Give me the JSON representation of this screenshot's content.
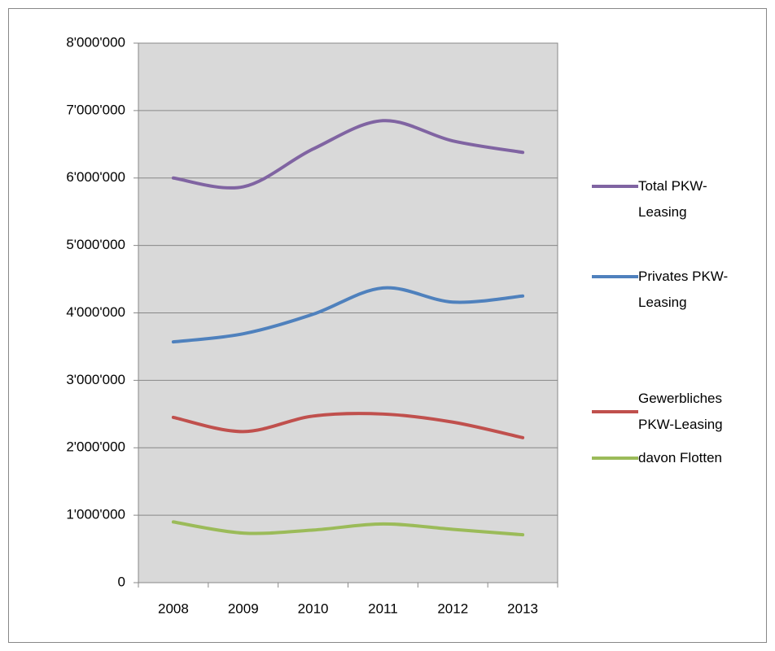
{
  "chart_data": {
    "type": "line",
    "categories": [
      "2008",
      "2009",
      "2010",
      "2011",
      "2012",
      "2013"
    ],
    "series": [
      {
        "name": "Total PKW-Leasing",
        "color": "#8064a2",
        "values": [
          6000000,
          5870000,
          6430000,
          6850000,
          6550000,
          6380000
        ]
      },
      {
        "name": "Privates PKW-Leasing",
        "color": "#4f81bd",
        "values": [
          3570000,
          3690000,
          3980000,
          4370000,
          4160000,
          4250000
        ]
      },
      {
        "name": "Gewerbliches PKW-Leasing",
        "color": "#c0504d",
        "values": [
          2450000,
          2240000,
          2470000,
          2500000,
          2380000,
          2150000
        ]
      },
      {
        "name": "davon Flotten",
        "color": "#9bbb59",
        "values": [
          900000,
          735000,
          780000,
          870000,
          790000,
          710000
        ]
      }
    ],
    "ylim": [
      0,
      8000000
    ],
    "yticks": [
      0,
      {
        "value": 1000000,
        "label": "1'000'000"
      },
      {
        "value": 2000000,
        "label": "2'000'000"
      },
      {
        "value": 3000000,
        "label": "3'000'000"
      },
      {
        "value": 4000000,
        "label": "4'000'000"
      },
      {
        "value": 5000000,
        "label": "5'000'000"
      },
      {
        "value": 6000000,
        "label": "6'000'000"
      },
      {
        "value": 7000000,
        "label": "7'000'000"
      },
      {
        "value": 8000000,
        "label": "8'000'000"
      }
    ],
    "grid": true,
    "legend": "right",
    "smooth": true
  }
}
